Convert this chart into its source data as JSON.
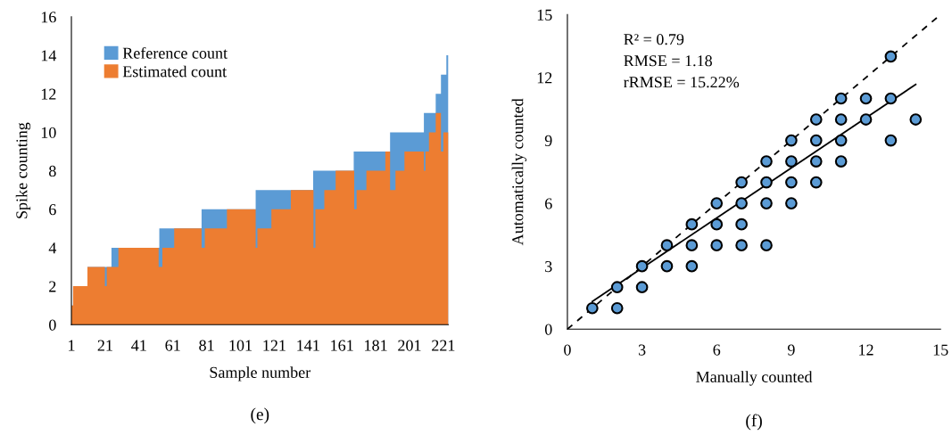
{
  "chart_data": [
    {
      "type": "area",
      "title": "(e)",
      "xlabel": "Sample number",
      "ylabel": "Spike counting",
      "xlim": [
        1,
        224
      ],
      "xticks": [
        1,
        21,
        41,
        61,
        81,
        101,
        121,
        141,
        161,
        181,
        201,
        221
      ],
      "ylim": [
        0,
        16
      ],
      "yticks": [
        0,
        2,
        4,
        6,
        8,
        10,
        12,
        14,
        16
      ],
      "grid": false,
      "legend": "top left",
      "series": [
        {
          "name": "Reference count",
          "color": "#5b9bd5",
          "x": [
            1,
            2,
            2,
            10.5,
            10.5,
            24.7,
            24.7,
            53,
            53,
            78,
            78,
            110,
            110,
            144,
            144,
            168,
            168,
            189.5,
            189.5,
            209.5,
            209.5,
            216.5,
            216.5,
            219.6,
            219.6,
            222.8,
            222.8,
            224
          ],
          "values": [
            1,
            1,
            2,
            2,
            3,
            3,
            4,
            4,
            5,
            5,
            6,
            6,
            7,
            7,
            8,
            8,
            9,
            9,
            10,
            10,
            11,
            11,
            12,
            12,
            13,
            13,
            14,
            14
          ]
        },
        {
          "name": "Estimated count",
          "color": "#ed7d31",
          "x": [
            1,
            2,
            2,
            10.5,
            10.5,
            20.8,
            20.8,
            21.9,
            21.9,
            28.8,
            28.8,
            52.6,
            52.6,
            54.8,
            54.8,
            61.8,
            61.8,
            78,
            78,
            79.9,
            79.9,
            93,
            93,
            110,
            110,
            111,
            111,
            119.3,
            119.3,
            130.8,
            130.8,
            144.2,
            144.2,
            145.3,
            145.3,
            150.6,
            150.6,
            157.3,
            157.3,
            168.3,
            168.3,
            169.7,
            169.7,
            175.5,
            175.5,
            186.7,
            186.7,
            189.5,
            189.5,
            192.7,
            192.7,
            198,
            198,
            209.5,
            209.5,
            210.4,
            210.4,
            212.5,
            212.5,
            216.5,
            216.5,
            219.6,
            219.6,
            221,
            221,
            224
          ],
          "values": [
            1,
            1,
            2,
            2,
            3,
            3,
            2,
            2,
            3,
            3,
            4,
            4,
            3,
            3,
            4,
            4,
            5,
            5,
            4,
            4,
            5,
            5,
            6,
            6,
            4,
            4,
            5,
            5,
            6,
            6,
            7,
            7,
            4,
            4,
            6,
            6,
            7,
            7,
            8,
            8,
            6,
            6,
            7,
            7,
            8,
            8,
            9,
            9,
            7,
            7,
            8,
            8,
            9,
            9,
            8,
            8,
            9,
            9,
            10,
            10,
            11,
            11,
            9,
            9,
            10,
            10
          ]
        }
      ]
    },
    {
      "type": "scatter",
      "title": "(f)",
      "xlabel": "Manually counted",
      "ylabel": "Automatically counted",
      "xlim": [
        0,
        15
      ],
      "xticks": [
        0,
        3,
        6,
        9,
        12,
        15
      ],
      "ylim": [
        0,
        15
      ],
      "yticks": [
        0,
        3,
        6,
        9,
        12,
        15
      ],
      "grid": false,
      "legend": false,
      "annotations": [
        "R² = 0.79",
        "RMSE = 1.18",
        "rRMSE = 15.22%"
      ],
      "series": [
        {
          "type": "line",
          "color": "#000000",
          "line_style": "dashed",
          "x": [
            0,
            15
          ],
          "values": [
            0,
            15
          ]
        },
        {
          "type": "line",
          "color": "#000000",
          "line_style": "solid",
          "x": [
            1,
            14
          ],
          "values": [
            1.32,
            11.67
          ]
        },
        {
          "type": "scatter",
          "color": "#5b9bd5",
          "marker": "circle",
          "x": [
            1,
            2,
            2,
            3,
            3,
            4,
            4,
            5,
            5,
            5,
            6,
            6,
            6,
            7,
            7,
            7,
            7,
            8,
            8,
            8,
            8,
            9,
            9,
            9,
            9,
            10,
            10,
            10,
            10,
            11,
            11,
            11,
            11,
            12,
            12,
            13,
            13,
            13,
            14
          ],
          "values": [
            1,
            2,
            1,
            3,
            2,
            4,
            3,
            5,
            4,
            3,
            6,
            5,
            4,
            7,
            6,
            5,
            4,
            8,
            7,
            6,
            4,
            9,
            8,
            7,
            6,
            10,
            9,
            8,
            7,
            11,
            10,
            9,
            8,
            11,
            10,
            13,
            11,
            9,
            10
          ]
        }
      ]
    }
  ]
}
